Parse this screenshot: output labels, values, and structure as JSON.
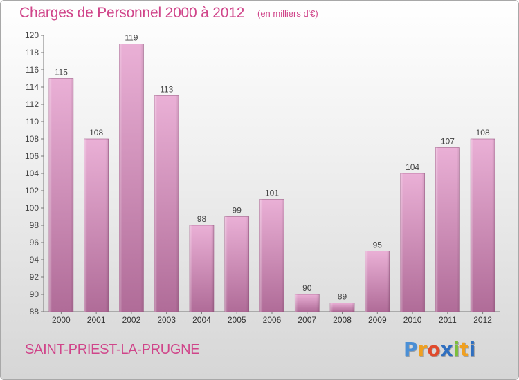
{
  "title": "Charges de Personnel 2000 à 2012",
  "subtitle": "(en milliers d'€)",
  "commune": "SAINT-PRIEST-LA-PRUGNE",
  "logo": {
    "letters": [
      {
        "ch": "P",
        "color": "#4a8fd6"
      },
      {
        "ch": "r",
        "color": "#f0a020"
      },
      {
        "ch": "o",
        "color": "#e04a2c"
      },
      {
        "ch": "x",
        "color": "#2f6fc0"
      },
      {
        "ch": "i",
        "color": "#7bbf3a"
      },
      {
        "ch": "t",
        "color": "#f0a020"
      },
      {
        "ch": "i",
        "color": "#2f6fc0"
      }
    ]
  },
  "colors": {
    "accent": "#d0458a",
    "bar_light": "#e8a8d0",
    "bar_dark": "#b86a98"
  },
  "chart_data": {
    "type": "bar",
    "categories": [
      "2000",
      "2001",
      "2002",
      "2003",
      "2004",
      "2005",
      "2006",
      "2007",
      "2008",
      "2009",
      "2010",
      "2011",
      "2012"
    ],
    "values": [
      115,
      108,
      119,
      113,
      98,
      99,
      101,
      90,
      89,
      95,
      104,
      107,
      108
    ],
    "ylim": [
      88,
      120
    ],
    "yticks": [
      88,
      90,
      92,
      94,
      96,
      98,
      100,
      102,
      104,
      106,
      108,
      110,
      112,
      114,
      116,
      118,
      120
    ],
    "grid": false,
    "legend": "none"
  }
}
